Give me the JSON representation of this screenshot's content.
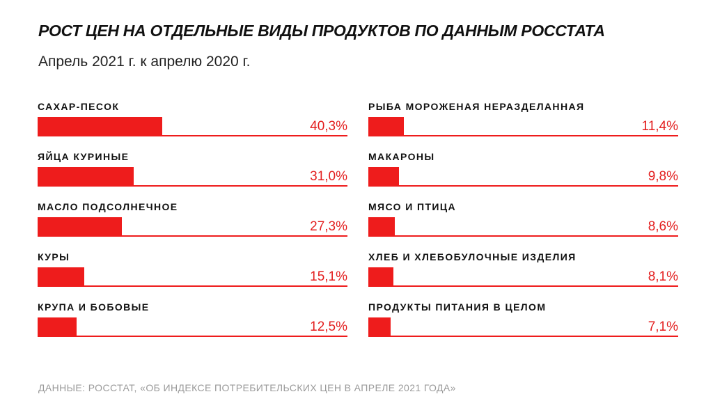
{
  "title": "РОСТ ЦЕН НА ОТДЕЛЬНЫЕ ВИДЫ ПРОДУКТОВ ПО ДАННЫМ РОССТАТА",
  "subtitle": "Апрель 2021 г. к апрелю 2020 г.",
  "source": "ДАННЫЕ: РОССТАТ, «ОБ ИНДЕКСЕ ПОТРЕБИТЕЛЬСКИХ ЦЕН В АПРЕЛЕ 2021 ГОДА»",
  "colors": {
    "bar": "#ee1c1c",
    "value_text": "#e31e1e",
    "source_text": "#9a9a9a"
  },
  "chart_data": {
    "type": "bar",
    "orientation": "horizontal",
    "title": "РОСТ ЦЕН НА ОТДЕЛЬНЫЕ ВИДЫ ПРОДУКТОВ ПО ДАННЫМ РОССТАТА",
    "subtitle": "Апрель 2021 г. к апрелю 2020 г.",
    "unit": "%",
    "xlim": [
      0,
      100
    ],
    "grid": false,
    "legend": "none",
    "categories": [
      "САХАР-ПЕСОК",
      "ЯЙЦА КУРИНЫЕ",
      "МАСЛО ПОДСОЛНЕЧНОЕ",
      "КУРЫ",
      "КРУПА И БОБОВЫЕ",
      "РЫБА МОРОЖЕНАЯ НЕРАЗДЕЛАННАЯ",
      "МАКАРОНЫ",
      "МЯСО И ПТИЦА",
      "ХЛЕБ И ХЛЕБОБУЛОЧНЫЕ ИЗДЕЛИЯ",
      "ПРОДУКТЫ ПИТАНИЯ В ЦЕЛОМ"
    ],
    "values": [
      40.3,
      31.0,
      27.3,
      15.1,
      12.5,
      11.4,
      9.8,
      8.6,
      8.1,
      7.1
    ],
    "value_labels": [
      "40,3%",
      "31,0%",
      "27,3%",
      "15,1%",
      "12,5%",
      "11,4%",
      "9,8%",
      "8,6%",
      "8,1%",
      "7,1%"
    ]
  }
}
